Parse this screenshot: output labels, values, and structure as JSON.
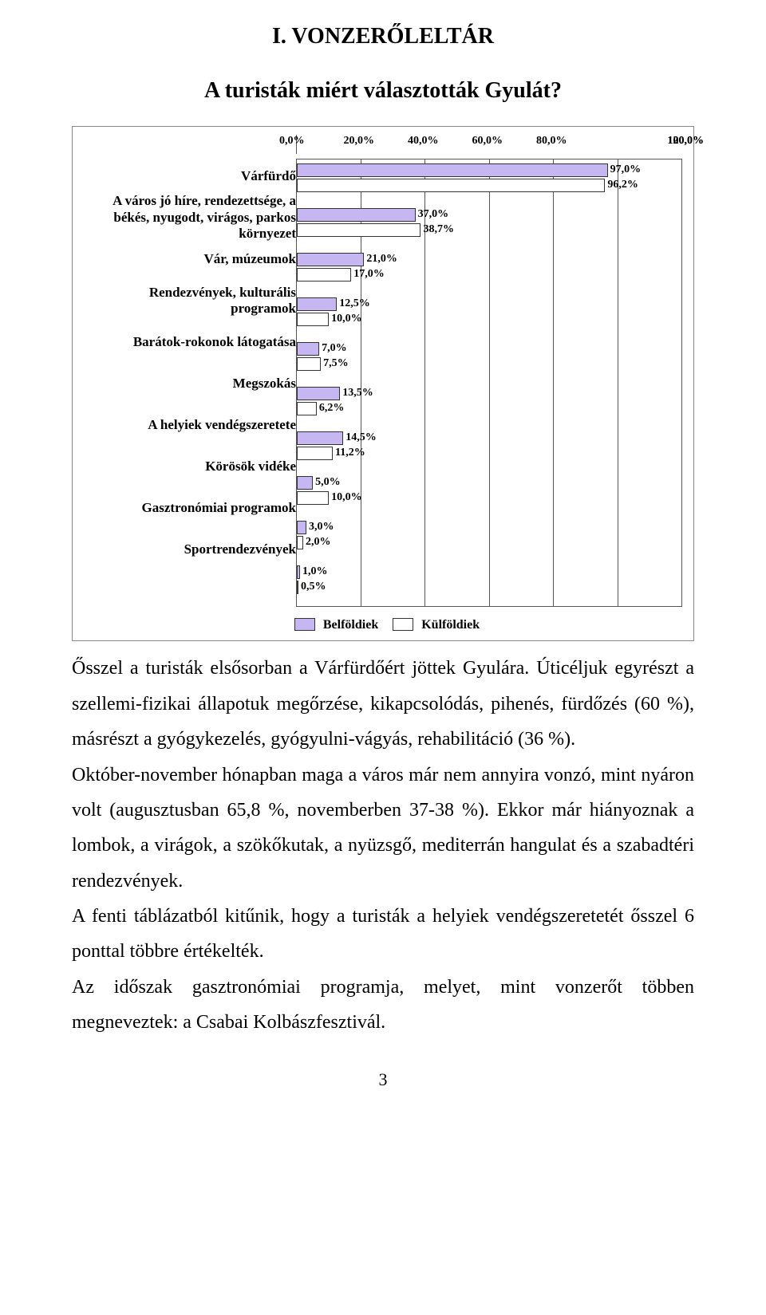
{
  "heading1": "I. VONZERŐLELTÁR",
  "heading2": "A turisták miért választották Gyulát?",
  "chart": {
    "type": "bar",
    "x_max": 120,
    "x_ticks": [
      "0,0%",
      "20,0%",
      "40,0%",
      "60,0%",
      "80,0%",
      "100,0%",
      "120,0%"
    ],
    "series": [
      {
        "name": "Belföldiek",
        "color": "#c6b6f2",
        "border": "#333333"
      },
      {
        "name": "Külföldiek",
        "color": "#ffffff",
        "border": "#333333"
      }
    ],
    "plot_bg": "#ffffff",
    "grid_color": "#555555",
    "label_fontsize": 17,
    "value_fontsize": 14,
    "categories": [
      {
        "label": "Várfürdő",
        "v1": 97.0,
        "v1_label": "97,0%",
        "v2": 96.2,
        "v2_label": "96,2%"
      },
      {
        "label": "A város jó híre, rendezettsége, a békés, nyugodt, virágos, parkos környezet",
        "v1": 37.0,
        "v1_label": "37,0%",
        "v2": 38.7,
        "v2_label": "38,7%"
      },
      {
        "label": "Vár, múzeumok",
        "v1": 21.0,
        "v1_label": "21,0%",
        "v2": 17.0,
        "v2_label": "17,0%"
      },
      {
        "label": "Rendezvények, kulturális programok",
        "v1": 12.5,
        "v1_label": "12,5%",
        "v2": 10.0,
        "v2_label": "10,0%"
      },
      {
        "label": "Barátok-rokonok látogatása",
        "v1": 7.0,
        "v1_label": "7,0%",
        "v2": 7.5,
        "v2_label": "7,5%"
      },
      {
        "label": "Megszokás",
        "v1": 13.5,
        "v1_label": "13,5%",
        "v2": 6.2,
        "v2_label": "6,2%"
      },
      {
        "label": "A helyiek vendégszeretete",
        "v1": 14.5,
        "v1_label": "14,5%",
        "v2": 11.2,
        "v2_label": "11,2%"
      },
      {
        "label": "Körösök vidéke",
        "v1": 5.0,
        "v1_label": "5,0%",
        "v2": 10.0,
        "v2_label": "10,0%"
      },
      {
        "label": "Gasztronómiai programok",
        "v1": 3.0,
        "v1_label": "3,0%",
        "v2": 2.0,
        "v2_label": "2,0%"
      },
      {
        "label": "Sportrendezvények",
        "v1": 1.0,
        "v1_label": "1,0%",
        "v2": 0.5,
        "v2_label": "0,5%"
      }
    ]
  },
  "paragraphs": [
    "Ősszel a turisták elsősorban a Várfürdőért jöttek Gyulára. Úticéljuk egyrészt a szellemi-fizikai állapotuk megőrzése, kikapcsolódás, pihenés, fürdőzés (60 %), másrészt a gyógykezelés, gyógyulni-vágyás, rehabilitáció (36 %).",
    "Október-november hónapban maga a város már nem annyira vonzó, mint nyáron volt (augusztusban 65,8 %, novemberben 37-38 %). Ekkor már hiányoznak a lombok, a virágok, a szökőkutak, a nyüzsgő, mediterrán hangulat és a szabadtéri rendezvények.",
    "A fenti táblázatból kitűnik, hogy a turisták a helyiek vendégszeretetét ősszel 6 ponttal többre értékelték.",
    "Az időszak gasztronómiai programja, melyet, mint vonzerőt többen megneveztek: a Csabai Kolbászfesztivál."
  ],
  "page_number": "3"
}
